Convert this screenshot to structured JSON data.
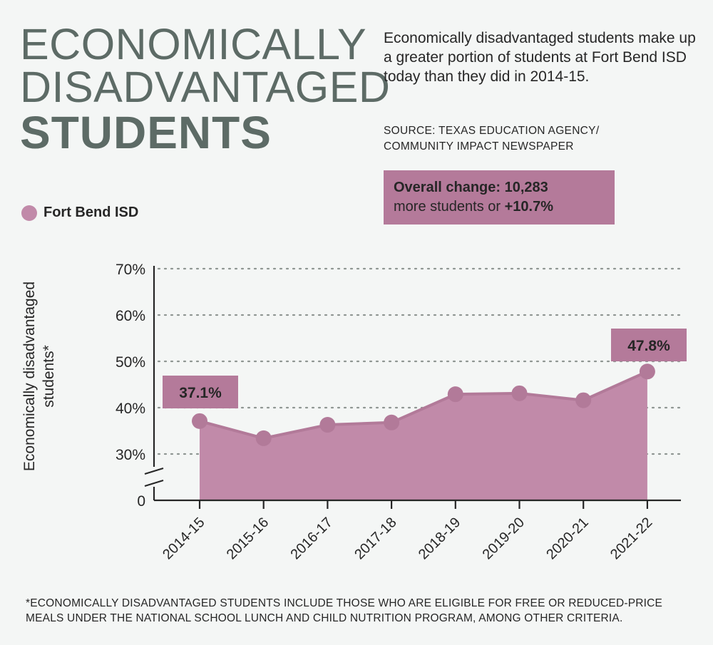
{
  "header": {
    "title_line1": "ECONOMICALLY",
    "title_line2": "DISADVANTAGED",
    "title_line3": "STUDENTS",
    "description": "Economically disadvantaged students make up a greater portion of students at Fort Bend ISD today than they did in 2014-15.",
    "source_line1": "SOURCE: TEXAS EDUCATION AGENCY/",
    "source_line2": "COMMUNITY IMPACT NEWSPAPER"
  },
  "callout": {
    "bold_part": "Overall change: 10,283",
    "line2_normal": "more students or ",
    "line2_bold": "+10.7%"
  },
  "footnote": "*ECONOMICALLY DISADVANTAGED STUDENTS INCLUDE THOSE WHO ARE ELIGIBLE FOR FREE OR REDUCED-PRICE MEALS UNDER THE NATIONAL SCHOOL LUNCH AND CHILD NUTRITION PROGRAM, AMONG OTHER CRITERIA.",
  "colors": {
    "accent": "#c18aa9",
    "area": "#c18aa9",
    "line": "#b27a99",
    "label_box": "#b47a9a",
    "title": "#5d6b66"
  },
  "chart_data": {
    "type": "area",
    "ylabel_line1": "Economically disadvantaged",
    "ylabel_line2": "students*",
    "categories": [
      "2014-15",
      "2015-16",
      "2016-17",
      "2017-18",
      "2018-19",
      "2019-20",
      "2020-21",
      "2021-22"
    ],
    "series": [
      {
        "name": "Fort Bend ISD",
        "values": [
          37.1,
          33.4,
          36.3,
          36.8,
          42.9,
          43.1,
          41.6,
          47.8
        ]
      }
    ],
    "y_ticks": [
      {
        "value": 0,
        "label": "0"
      },
      {
        "value": 30,
        "label": "30%"
      },
      {
        "value": 40,
        "label": "40%"
      },
      {
        "value": 50,
        "label": "50%"
      },
      {
        "value": 60,
        "label": "60%"
      },
      {
        "value": 70,
        "label": "70%"
      }
    ],
    "ylim": [
      30,
      70
    ],
    "axis_break": true,
    "grid": true,
    "legend": "top-left",
    "annotations": [
      {
        "category": "2014-15",
        "label": "37.1%"
      },
      {
        "category": "2021-22",
        "label": "47.8%"
      }
    ]
  }
}
